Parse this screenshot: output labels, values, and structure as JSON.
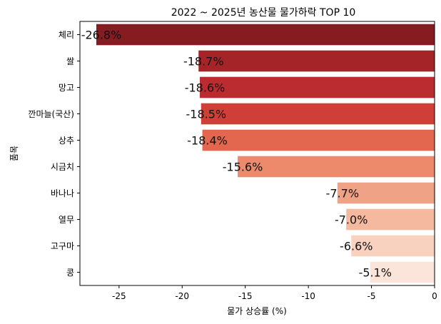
{
  "chart_data": {
    "type": "bar",
    "orientation": "horizontal",
    "title": "2022 ~ 2025년 농산물 물가하락 TOP 10",
    "xlabel": "물가 상승률 (%)",
    "ylabel": "품목",
    "xlim": [
      -28.1,
      0
    ],
    "xticks": [
      -25,
      -20,
      -15,
      -10,
      -5,
      0
    ],
    "xtick_labels": [
      "-25",
      "-20",
      "-15",
      "-10",
      "-5",
      "0"
    ],
    "grid": false,
    "categories": [
      "체리",
      "쌀",
      "망고",
      "깐마늘(국산)",
      "상추",
      "시금치",
      "바나나",
      "열무",
      "고구마",
      "콩"
    ],
    "values": [
      -26.8,
      -18.7,
      -18.6,
      -18.5,
      -18.4,
      -15.6,
      -7.7,
      -7.0,
      -6.6,
      -5.1
    ],
    "data_labels": [
      "-26.8%",
      "-18.7%",
      "-18.6%",
      "-18.5%",
      "-18.4%",
      "-15.6%",
      "-7.7%",
      "-7.0%",
      "-6.6%",
      "-5.1%"
    ],
    "colors": [
      "#861c22",
      "#a42428",
      "#bb2c31",
      "#d03f37",
      "#e3674f",
      "#ec8a6b",
      "#f0a287",
      "#f5b9a0",
      "#f8d1bf",
      "#fbe4d9"
    ]
  }
}
